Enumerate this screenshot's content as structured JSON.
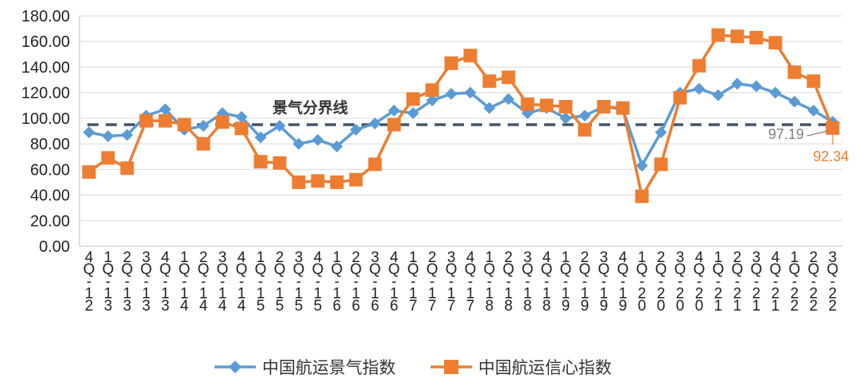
{
  "chart_data": {
    "type": "line",
    "title": "",
    "xlabel": "",
    "ylabel": "",
    "ylim": [
      0,
      180
    ],
    "ytick_step": 20,
    "ytick_labels": [
      "0.00",
      "20.00",
      "40.00",
      "60.00",
      "80.00",
      "100.00",
      "120.00",
      "140.00",
      "160.00",
      "180.00"
    ],
    "grid": true,
    "legend_position": "bottom",
    "categories": [
      "4Q-12",
      "1Q-13",
      "2Q-13",
      "3Q-13",
      "4Q-13",
      "1Q-14",
      "2Q-14",
      "3Q-14",
      "4Q-14",
      "1Q-15",
      "2Q-15",
      "3Q-15",
      "4Q-15",
      "1Q-16",
      "2Q-16",
      "3Q-16",
      "4Q-16",
      "1Q-17",
      "2Q-17",
      "3Q-17",
      "4Q-17",
      "1Q-18",
      "2Q-18",
      "3Q-18",
      "4Q-18",
      "1Q-19",
      "2Q-19",
      "3Q-19",
      "4Q-19",
      "1Q-20",
      "2Q-20",
      "3Q-20",
      "4Q-20",
      "1Q-21",
      "2Q-21",
      "3Q-21",
      "4Q-21",
      "1Q-22",
      "2Q-22",
      "3Q-22"
    ],
    "series": [
      {
        "name": "中国航运景气指数",
        "color": "#5b9bd5",
        "marker": "diamond",
        "values": [
          89,
          86,
          87,
          102,
          107,
          91,
          94,
          104,
          101,
          85,
          94,
          80,
          83,
          78,
          91,
          96,
          106,
          104,
          114,
          119,
          120,
          108,
          115,
          104,
          108,
          100,
          102,
          109,
          107,
          63,
          89,
          120,
          123,
          118,
          127,
          125,
          120,
          113,
          106,
          97.19
        ]
      },
      {
        "name": "中国航运信心指数",
        "color": "#ed7d31",
        "marker": "square",
        "values": [
          58,
          69,
          61,
          98,
          98,
          95,
          80,
          97,
          92,
          66,
          65,
          50,
          51,
          50,
          52,
          64,
          95,
          115,
          122,
          143,
          149,
          129,
          132,
          111,
          110,
          109,
          91,
          109,
          108,
          39,
          64,
          116,
          141,
          165,
          164,
          163,
          159,
          136,
          129,
          92.34
        ]
      }
    ],
    "threshold": {
      "value": 95,
      "label": "景气分界线",
      "color": "#44546a"
    },
    "end_labels": [
      {
        "text": "97.19",
        "color": "#7f7f7f"
      },
      {
        "text": "92.34",
        "color": "#ed7d31"
      }
    ]
  }
}
